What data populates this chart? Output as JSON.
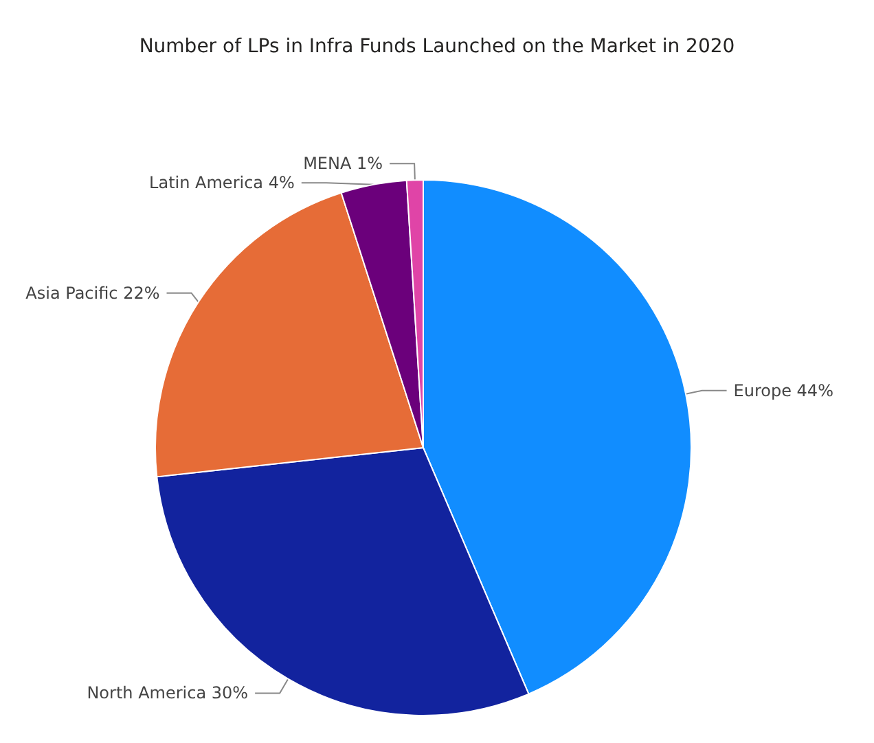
{
  "chart_data": {
    "type": "pie",
    "title": "Number of LPs in Infra Funds Launched on the Market in 2020",
    "categories": [
      "Europe",
      "North America",
      "Asia Pacific",
      "Latin America",
      "MENA"
    ],
    "values": [
      44,
      30,
      22,
      4,
      1
    ],
    "colors": [
      "#118dff",
      "#12239e",
      "#e66c37",
      "#6b007b",
      "#e044a7"
    ],
    "value_labels": [
      "44%",
      "30%",
      "22%",
      "4%",
      "1%"
    ],
    "legend": false
  }
}
